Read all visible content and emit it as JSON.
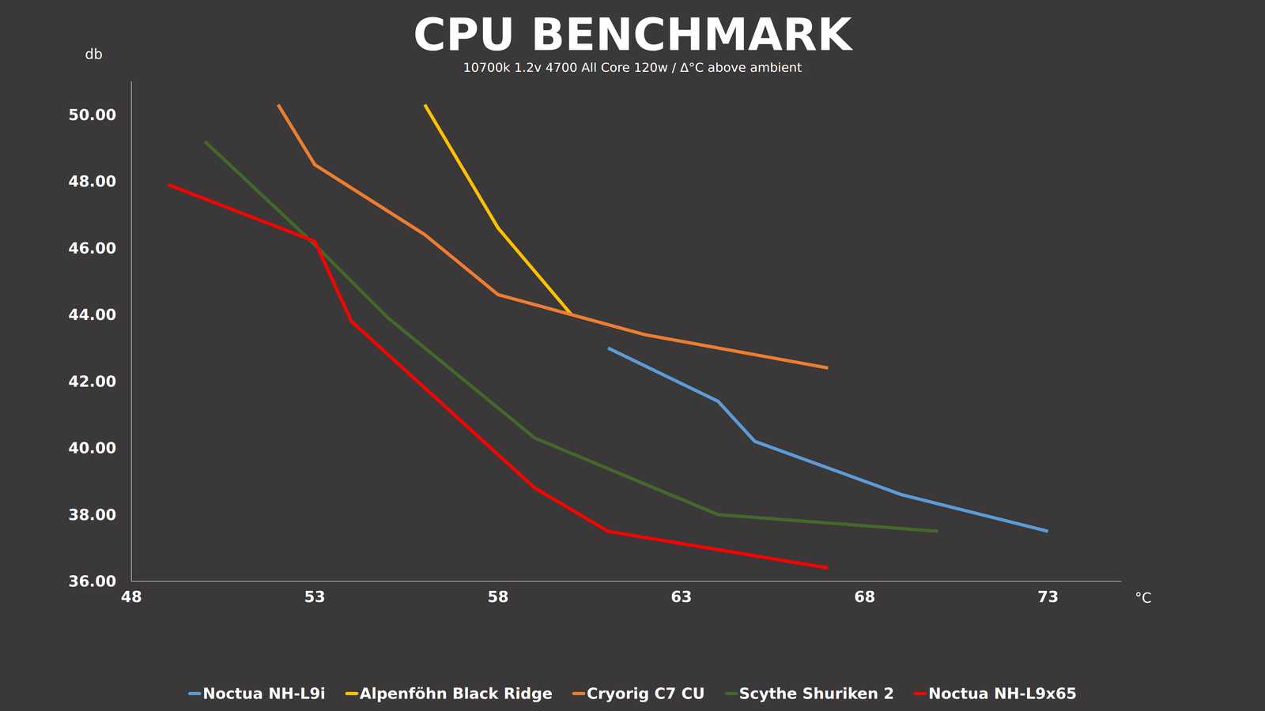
{
  "chart_data": {
    "type": "line",
    "title": "CPU BENCHMARK",
    "subtitle": "10700k 1.2v 4700 All Core 120w /  Δ°C above ambient",
    "y_label": "db",
    "x_label": "°C",
    "xlim": [
      48,
      75
    ],
    "xticks": [
      48,
      53,
      58,
      63,
      68,
      73
    ],
    "ylim": [
      36,
      51
    ],
    "yticks": [
      {
        "value": 36,
        "label": "36.00"
      },
      {
        "value": 38,
        "label": "38.00"
      },
      {
        "value": 40,
        "label": "40.00"
      },
      {
        "value": 42,
        "label": "42.00"
      },
      {
        "value": 44,
        "label": "44.00"
      },
      {
        "value": 46,
        "label": "46.00"
      },
      {
        "value": 48,
        "label": "48.00"
      },
      {
        "value": 50,
        "label": "50.00"
      }
    ],
    "grid": false,
    "legend": "bottom",
    "series": [
      {
        "name": "Noctua NH-L9i",
        "color": "#5b9bd5",
        "x": [
          61,
          64,
          65,
          69,
          73
        ],
        "values": [
          43.0,
          41.4,
          40.2,
          38.6,
          37.5
        ]
      },
      {
        "name": "Alpenföhn Black Ridge",
        "color": "#ffc000",
        "x": [
          56,
          58,
          60
        ],
        "values": [
          50.3,
          46.6,
          44.0
        ]
      },
      {
        "name": "Cryorig C7 CU",
        "color": "#ed7d31",
        "x": [
          52,
          53,
          56,
          58,
          60,
          62,
          67
        ],
        "values": [
          50.3,
          48.5,
          46.4,
          44.6,
          44.0,
          43.4,
          42.4
        ]
      },
      {
        "name": "Scythe Shuriken 2",
        "color": "#43682b",
        "x": [
          50,
          53,
          55,
          59,
          64,
          70
        ],
        "values": [
          49.2,
          46.1,
          43.9,
          40.3,
          38.0,
          37.5
        ]
      },
      {
        "name": "Noctua NH-L9x65",
        "color": "#ff0000",
        "x": [
          49,
          53,
          54,
          56,
          59,
          61,
          67
        ],
        "values": [
          47.9,
          46.2,
          43.8,
          41.8,
          38.8,
          37.5,
          36.4
        ]
      }
    ]
  }
}
